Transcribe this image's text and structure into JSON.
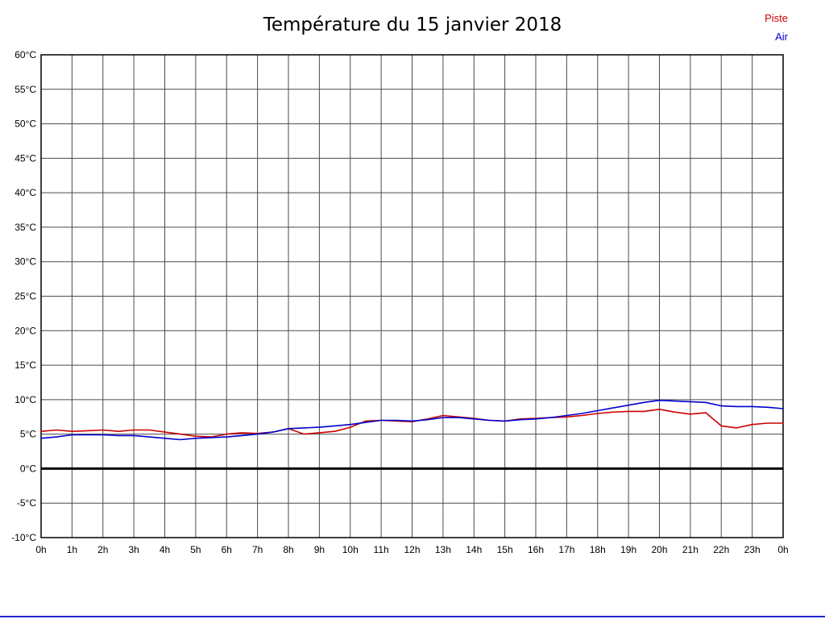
{
  "title": "Température du 15 janvier 2018",
  "legend": {
    "piste_label": "Piste",
    "air_label": "Air"
  },
  "chart_data": {
    "type": "line",
    "title": "Température du 15 janvier 2018",
    "xlabel": "",
    "ylabel": "",
    "xlim": [
      0,
      24
    ],
    "ylim": [
      -10,
      60
    ],
    "grid": true,
    "zero_line": true,
    "legend_position": "top-right",
    "x_ticks": [
      0,
      1,
      2,
      3,
      4,
      5,
      6,
      7,
      8,
      9,
      10,
      11,
      12,
      13,
      14,
      15,
      16,
      17,
      18,
      19,
      20,
      21,
      22,
      23,
      24
    ],
    "x_tick_labels": [
      "0h",
      "1h",
      "2h",
      "3h",
      "4h",
      "5h",
      "6h",
      "7h",
      "8h",
      "9h",
      "10h",
      "11h",
      "12h",
      "13h",
      "14h",
      "15h",
      "16h",
      "17h",
      "18h",
      "19h",
      "20h",
      "21h",
      "22h",
      "23h",
      "0h"
    ],
    "y_ticks": [
      60,
      55,
      50,
      45,
      40,
      35,
      30,
      25,
      20,
      15,
      10,
      5,
      0,
      -5,
      -10
    ],
    "y_tick_labels": [
      "60°C",
      "55°C",
      "50°C",
      "45°C",
      "40°C",
      "35°C",
      "30°C",
      "25°C",
      "20°C",
      "15°C",
      "10°C",
      "5°C",
      "0°C",
      "-5°C",
      "-10°C"
    ],
    "x": [
      0,
      0.5,
      1,
      1.5,
      2,
      2.5,
      3,
      3.5,
      4,
      4.5,
      5,
      5.5,
      6,
      6.5,
      7,
      7.5,
      8,
      8.5,
      9,
      9.5,
      10,
      10.5,
      11,
      11.5,
      12,
      12.5,
      13,
      13.5,
      14,
      14.5,
      15,
      15.5,
      16,
      16.5,
      17,
      17.5,
      18,
      18.5,
      19,
      19.5,
      20,
      20.5,
      21,
      21.5,
      22,
      22.5,
      23,
      23.5,
      24
    ],
    "series": [
      {
        "name": "Piste",
        "color": "#cc0000",
        "values": [
          5.4,
          5.6,
          5.4,
          5.5,
          5.6,
          5.4,
          5.6,
          5.6,
          5.3,
          5.0,
          4.7,
          4.6,
          5.0,
          5.2,
          5.1,
          5.3,
          5.8,
          5.0,
          5.2,
          5.4,
          6.0,
          6.9,
          7.0,
          6.9,
          6.8,
          7.2,
          7.7,
          7.5,
          7.3,
          7.0,
          6.9,
          7.2,
          7.3,
          7.4,
          7.5,
          7.7,
          8.0,
          8.2,
          8.3,
          8.3,
          8.6,
          8.2,
          7.9,
          8.1,
          6.2,
          5.9,
          6.4,
          6.6,
          6.6
        ]
      },
      {
        "name": "Air",
        "color": "#0000cc",
        "values": [
          4.4,
          4.6,
          4.9,
          4.9,
          4.9,
          4.8,
          4.8,
          4.6,
          4.4,
          4.2,
          4.4,
          4.5,
          4.6,
          4.8,
          5.0,
          5.3,
          5.8,
          5.9,
          6.0,
          6.2,
          6.4,
          6.7,
          7.0,
          7.0,
          6.9,
          7.1,
          7.4,
          7.4,
          7.2,
          7.0,
          6.9,
          7.1,
          7.2,
          7.4,
          7.7,
          8.0,
          8.4,
          8.8,
          9.2,
          9.6,
          9.9,
          9.8,
          9.7,
          9.6,
          9.1,
          9.0,
          9.0,
          8.9,
          8.7
        ]
      }
    ]
  }
}
